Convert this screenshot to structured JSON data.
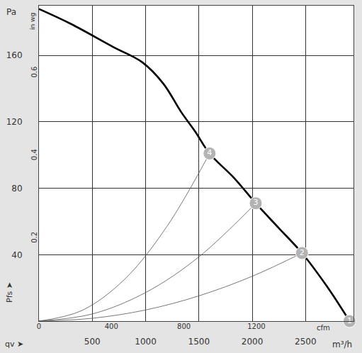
{
  "chart_data": {
    "type": "line",
    "x_label": "m³/h",
    "x2_label": "cfm",
    "y_label": "Pa",
    "y2_label": "in wg",
    "annotations": [
      {
        "text": "Pfs ➤"
      },
      {
        "text": "qv ➤"
      }
    ],
    "xlim": [
      0,
      2950
    ],
    "xticks": [
      500,
      1000,
      1500,
      2000,
      2500
    ],
    "x2lim": [
      0,
      1736
    ],
    "x2ticks": [
      0,
      400,
      800,
      1200
    ],
    "ylim": [
      0,
      190
    ],
    "yticks": [
      40,
      80,
      120,
      160
    ],
    "y2lim": [
      0,
      0.763
    ],
    "y2ticks": [
      0.2,
      0.4,
      0.6
    ],
    "grid": true,
    "series": [
      {
        "type": "line",
        "color": "#000000",
        "x": [
          0,
          300,
          700,
          967,
          1167,
          1333,
          1467,
          1600,
          1833,
          2033,
          2250,
          2467,
          2700,
          2913
        ],
        "values": [
          188,
          179,
          165,
          156,
          143,
          126,
          114,
          101,
          86,
          71,
          56,
          41,
          21,
          0
        ]
      },
      {
        "type": "line",
        "color": "#555555",
        "x": [
          0,
          400,
          800,
          1200,
          1600
        ],
        "values": [
          0,
          6.3,
          25,
          57,
          101
        ]
      },
      {
        "type": "line",
        "color": "#555555",
        "x": [
          0,
          500,
          1000,
          1500,
          2033
        ],
        "values": [
          0,
          4.3,
          17.2,
          38.7,
          71
        ]
      },
      {
        "type": "line",
        "color": "#555555",
        "x": [
          0,
          500,
          1000,
          1500,
          2000,
          2467
        ],
        "values": [
          0,
          1.7,
          6.7,
          15.2,
          27,
          41
        ]
      },
      {
        "type": "scatter",
        "marker": "circle",
        "color": "#b3b3b3",
        "labels": [
          "1",
          "2",
          "3",
          "4"
        ],
        "x": [
          2913,
          2467,
          2033,
          1600
        ],
        "values": [
          0,
          41,
          71,
          101
        ]
      }
    ]
  }
}
